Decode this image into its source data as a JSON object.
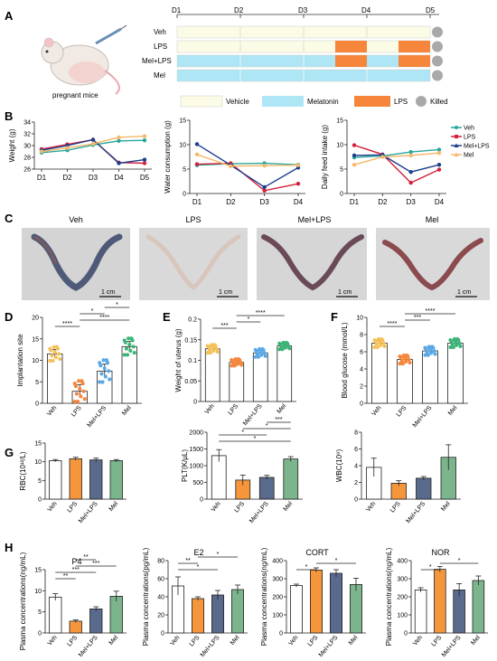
{
  "panels": [
    "A",
    "B",
    "C",
    "D",
    "E",
    "F",
    "G",
    "H"
  ],
  "panel_a": {
    "days": [
      "D1",
      "D2",
      "D3",
      "D4",
      "D5"
    ],
    "rows": [
      {
        "label": "Veh",
        "segments": [
          "v",
          "v",
          "v",
          "v"
        ]
      },
      {
        "label": "LPS",
        "segments": [
          "v",
          "v",
          "v",
          "l",
          "v",
          "l"
        ]
      },
      {
        "label": "Mel+LPS",
        "segments": [
          "m",
          "m",
          "m",
          "l",
          "m",
          "l"
        ]
      },
      {
        "label": "Mel",
        "segments": [
          "m",
          "m",
          "m",
          "m"
        ]
      }
    ],
    "mouse_caption": "pregnant mice",
    "legend": [
      {
        "label": "Vehicle",
        "color": "#fbfbe6"
      },
      {
        "label": "Melatonin",
        "color": "#aee6f5"
      },
      {
        "label": "LPS",
        "color": "#f5863c"
      },
      {
        "label": "Killed",
        "color": "#a9a9a9"
      }
    ]
  },
  "panel_b_legend": [
    {
      "label": "Veh",
      "color": "#2aa89a"
    },
    {
      "label": "LPS",
      "color": "#d61f3a"
    },
    {
      "label": "Mel+LPS",
      "color": "#1c3f8c"
    },
    {
      "label": "Mel",
      "color": "#f5b86b"
    }
  ],
  "panel_c": {
    "labels": [
      "Veh",
      "LPS",
      "Mel+LPS",
      "Mel"
    ],
    "scale": "1 cm"
  },
  "group_labels": [
    "Veh",
    "LPS",
    "Mel+LPS",
    "Mel"
  ],
  "group_colors": {
    "dot": [
      "#f5c15a",
      "#f5863c",
      "#5aa8e6",
      "#3cb478"
    ],
    "bar": [
      "#ffffff",
      "#f5963c",
      "#5a6a8c",
      "#7cb48c"
    ]
  },
  "chart_data": [
    {
      "id": "B1",
      "type": "line",
      "ylabel": "Weight (g)",
      "categories": [
        "D1",
        "D2",
        "D3",
        "D4",
        "D5"
      ],
      "ylim": [
        26,
        34
      ],
      "yticks": [
        26,
        28,
        30,
        32,
        34
      ],
      "series": [
        {
          "name": "Veh",
          "values": [
            28.8,
            29.2,
            30.1,
            30.8,
            30.9
          ]
        },
        {
          "name": "LPS",
          "values": [
            29.4,
            30.2,
            31.0,
            27.1,
            27.0
          ]
        },
        {
          "name": "Mel+LPS",
          "values": [
            29.2,
            30.0,
            31.0,
            27.0,
            27.6
          ]
        },
        {
          "name": "Mel",
          "values": [
            29.0,
            29.6,
            30.3,
            31.4,
            31.6
          ]
        }
      ]
    },
    {
      "id": "B2",
      "type": "line",
      "ylabel": "Water consumption (g)",
      "categories": [
        "D1",
        "D2",
        "D3",
        "D4"
      ],
      "ylim": [
        0,
        15
      ],
      "yticks": [
        0,
        5,
        10,
        15
      ],
      "series": [
        {
          "name": "Veh",
          "values": [
            5.8,
            6.1,
            6.2,
            5.9
          ]
        },
        {
          "name": "LPS",
          "values": [
            6.0,
            6.2,
            0.6,
            2.0
          ]
        },
        {
          "name": "Mel+LPS",
          "values": [
            10.1,
            5.8,
            1.3,
            5.3
          ]
        },
        {
          "name": "Mel",
          "values": [
            8.0,
            5.6,
            5.7,
            5.8
          ]
        }
      ]
    },
    {
      "id": "B3",
      "type": "line",
      "ylabel": "Daily feed intake (g)",
      "categories": [
        "D1",
        "D2",
        "D3",
        "D4"
      ],
      "ylim": [
        0,
        15
      ],
      "yticks": [
        0,
        5,
        10,
        15
      ],
      "series": [
        {
          "name": "Veh",
          "values": [
            7.4,
            7.7,
            8.5,
            9.0
          ]
        },
        {
          "name": "LPS",
          "values": [
            9.9,
            8.0,
            2.2,
            4.9
          ]
        },
        {
          "name": "Mel+LPS",
          "values": [
            7.8,
            7.9,
            4.4,
            5.9
          ]
        },
        {
          "name": "Mel",
          "values": [
            5.9,
            7.5,
            7.8,
            8.3
          ]
        }
      ]
    },
    {
      "id": "D",
      "type": "bar",
      "ylabel": "Implantation site",
      "categories": [
        "Veh",
        "LPS",
        "Mel+LPS",
        "Mel"
      ],
      "values": [
        11.5,
        2.8,
        7.5,
        13.2
      ],
      "errors": [
        1.0,
        1.5,
        1.6,
        1.2
      ],
      "ylim": [
        0,
        20
      ],
      "yticks": [
        0,
        5,
        10,
        15,
        20
      ],
      "significance": [
        {
          "a": 0,
          "b": 1,
          "label": "****"
        },
        {
          "a": 1,
          "b": 3,
          "label": "****"
        },
        {
          "a": 1,
          "b": 2,
          "label": "*"
        },
        {
          "a": 2,
          "b": 3,
          "label": "*"
        }
      ]
    },
    {
      "id": "E",
      "type": "bar",
      "ylabel": "Weight of uterus (g)",
      "categories": [
        "Veh",
        "LPS",
        "Mel+LPS",
        "Mel"
      ],
      "values": [
        0.128,
        0.095,
        0.118,
        0.135
      ],
      "errors": [
        0.006,
        0.005,
        0.006,
        0.005
      ],
      "ylim": [
        0,
        0.2
      ],
      "yticks": [
        0,
        0.05,
        0.1,
        0.15,
        0.2
      ],
      "significance": [
        {
          "a": 0,
          "b": 1,
          "label": "***"
        },
        {
          "a": 1,
          "b": 2,
          "label": "*"
        },
        {
          "a": 1,
          "b": 3,
          "label": "****"
        }
      ]
    },
    {
      "id": "F",
      "type": "bar",
      "ylabel": "Blood glucose (mmol/L)",
      "categories": [
        "Veh",
        "LPS",
        "Mel+LPS",
        "Mel"
      ],
      "values": [
        7.0,
        5.1,
        6.1,
        7.0
      ],
      "errors": [
        0.3,
        0.3,
        0.3,
        0.3
      ],
      "ylim": [
        0,
        10
      ],
      "yticks": [
        0,
        2,
        4,
        6,
        8,
        10
      ],
      "significance": [
        {
          "a": 0,
          "b": 1,
          "label": "****"
        },
        {
          "a": 1,
          "b": 2,
          "label": "***"
        },
        {
          "a": 1,
          "b": 3,
          "label": "****"
        }
      ]
    },
    {
      "id": "G1",
      "type": "bar",
      "ylabel": "RBC(10¹²/L)",
      "categories": [
        "Veh",
        "LPS",
        "Mel+LPS",
        "Mel"
      ],
      "values": [
        10.3,
        10.8,
        10.5,
        10.3
      ],
      "errors": [
        0.3,
        0.4,
        0.5,
        0.3
      ],
      "ylim": [
        0,
        15
      ],
      "yticks": [
        0,
        5,
        10,
        15
      ],
      "significance": []
    },
    {
      "id": "G2",
      "type": "bar",
      "ylabel": "PLT(K/μL)",
      "categories": [
        "Veh",
        "LPS",
        "Mel+LPS",
        "Mel"
      ],
      "values": [
        1300,
        570,
        650,
        1200
      ],
      "errors": [
        180,
        150,
        60,
        70
      ],
      "ylim": [
        0,
        2000
      ],
      "yticks": [
        0,
        500,
        1000,
        1500,
        2000
      ],
      "significance": [
        {
          "a": 0,
          "b": 3,
          "label": "*"
        },
        {
          "a": 0,
          "b": 2,
          "label": "*"
        },
        {
          "a": 1,
          "b": 3,
          "label": "*"
        },
        {
          "a": 2,
          "b": 3,
          "label": "***"
        }
      ]
    },
    {
      "id": "G3",
      "type": "bar",
      "ylabel": "WBC(10⁹)",
      "categories": [
        "Veh",
        "LPS",
        "Mel+LPS",
        "Mel"
      ],
      "values": [
        3.8,
        1.9,
        2.5,
        5.0
      ],
      "errors": [
        1.1,
        0.3,
        0.2,
        1.5
      ],
      "ylim": [
        0,
        8
      ],
      "yticks": [
        0,
        2,
        4,
        6,
        8
      ],
      "significance": []
    },
    {
      "id": "H1",
      "type": "bar",
      "title": "P4",
      "ylabel": "Plasma concentrations(ng/mL)",
      "categories": [
        "Veh",
        "LPS",
        "Mel+LPS",
        "Mel"
      ],
      "values": [
        8.5,
        2.8,
        5.7,
        8.7
      ],
      "errors": [
        0.8,
        0.3,
        0.5,
        1.2
      ],
      "ylim": [
        0,
        15
      ],
      "yticks": [
        0,
        5,
        10,
        15
      ],
      "significance": [
        {
          "a": 0,
          "b": 1,
          "label": "**"
        },
        {
          "a": 0,
          "b": 2,
          "label": "***"
        },
        {
          "a": 1,
          "b": 3,
          "label": "***"
        },
        {
          "a": 1,
          "b": 2,
          "label": "**"
        }
      ]
    },
    {
      "id": "H2",
      "type": "bar",
      "title": "E2",
      "ylabel": "Plasma concentrations(pg/mL)",
      "categories": [
        "Veh",
        "LPS",
        "Mel+LPS",
        "Mel"
      ],
      "values": [
        52,
        38,
        42,
        48
      ],
      "errors": [
        10,
        2,
        5,
        5
      ],
      "ylim": [
        0,
        80
      ],
      "yticks": [
        0,
        20,
        40,
        60,
        80
      ],
      "significance": [
        {
          "a": 0,
          "b": 2,
          "label": "*"
        },
        {
          "a": 0,
          "b": 1,
          "label": "**"
        },
        {
          "a": 1,
          "b": 3,
          "label": "*"
        }
      ]
    },
    {
      "id": "H3",
      "type": "bar",
      "title": "CORT",
      "ylabel": "Plasma concentrations(ng/mL)",
      "categories": [
        "Veh",
        "LPS",
        "Mel+LPS",
        "Mel"
      ],
      "values": [
        262,
        348,
        330,
        268
      ],
      "errors": [
        8,
        12,
        20,
        35
      ],
      "ylim": [
        0,
        400
      ],
      "yticks": [
        0,
        100,
        200,
        300,
        400
      ],
      "significance": [
        {
          "a": 0,
          "b": 1,
          "label": "*"
        },
        {
          "a": 1,
          "b": 3,
          "label": "*"
        }
      ]
    },
    {
      "id": "H4",
      "type": "bar",
      "title": "NOR",
      "ylabel": "Plasma concentrations(ng/mL)",
      "categories": [
        "Veh",
        "LPS",
        "Mel+LPS",
        "Mel"
      ],
      "values": [
        238,
        352,
        238,
        290
      ],
      "errors": [
        12,
        15,
        35,
        25
      ],
      "ylim": [
        0,
        400
      ],
      "yticks": [
        0,
        100,
        200,
        300,
        400
      ],
      "significance": [
        {
          "a": 0,
          "b": 1,
          "label": "*"
        },
        {
          "a": 1,
          "b": 3,
          "label": "*"
        }
      ]
    }
  ]
}
